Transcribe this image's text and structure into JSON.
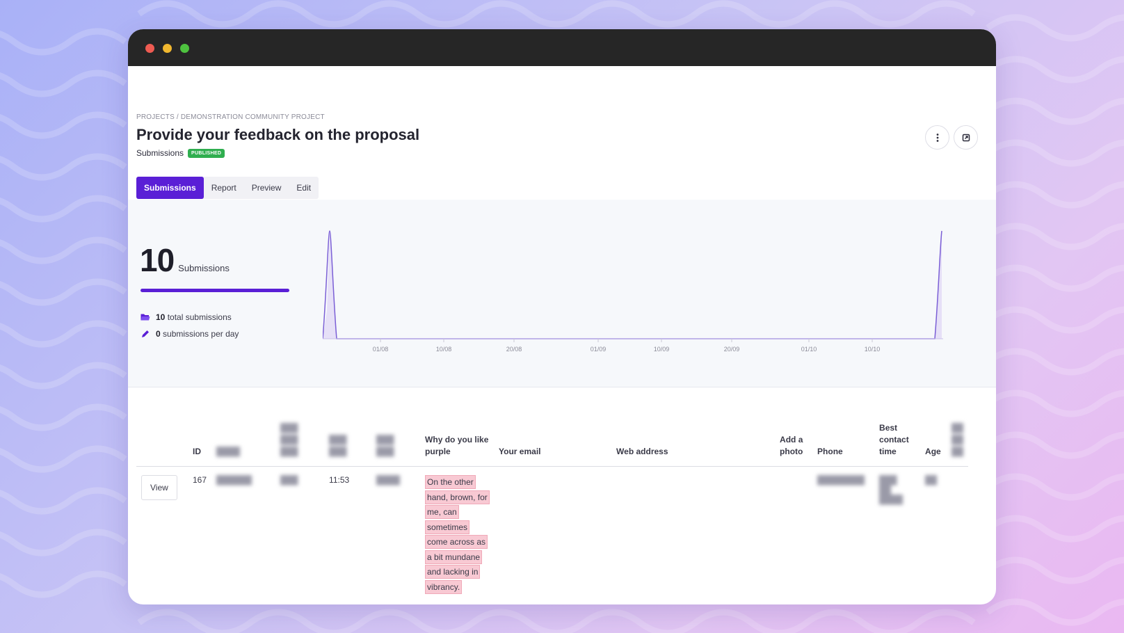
{
  "header": {
    "breadcrumb": "PROJECTS / DEMONSTRATION COMMUNITY PROJECT",
    "title": "Provide your feedback on the proposal",
    "subtitle": "Submissions",
    "status_badge": "PUBLISHED"
  },
  "tabs": [
    {
      "label": "Submissions",
      "active": true
    },
    {
      "label": "Report",
      "active": false
    },
    {
      "label": "Preview",
      "active": false
    },
    {
      "label": "Edit",
      "active": false
    }
  ],
  "stats": {
    "count": "10",
    "count_label": "Submissions",
    "total_value": "10",
    "total_label": "total submissions",
    "per_day_value": "0",
    "per_day_label": "submissions per day"
  },
  "chart_data": {
    "type": "area",
    "x_ticks": [
      "01/08",
      "10/08",
      "20/08",
      "01/09",
      "10/09",
      "20/09",
      "01/10",
      "10/10"
    ],
    "series_color": "#7b5fd6",
    "grid": false
  },
  "table": {
    "headers": {
      "id": "ID",
      "why_purple": "Why do you like purple",
      "email": "Your email",
      "web": "Web address",
      "photo": "Add a photo",
      "phone": "Phone",
      "contact": "Best contact time",
      "age": "Age"
    },
    "row": {
      "view_label": "View",
      "id": "167",
      "time": "11:53",
      "why_purple": "On the other hand, brown, for me, can sometimes come across as a bit mundane and lacking in vibrancy."
    }
  },
  "colors": {
    "accent": "#5a1fd6",
    "published": "#2fae4f",
    "highlight": "#f8c9d3"
  }
}
